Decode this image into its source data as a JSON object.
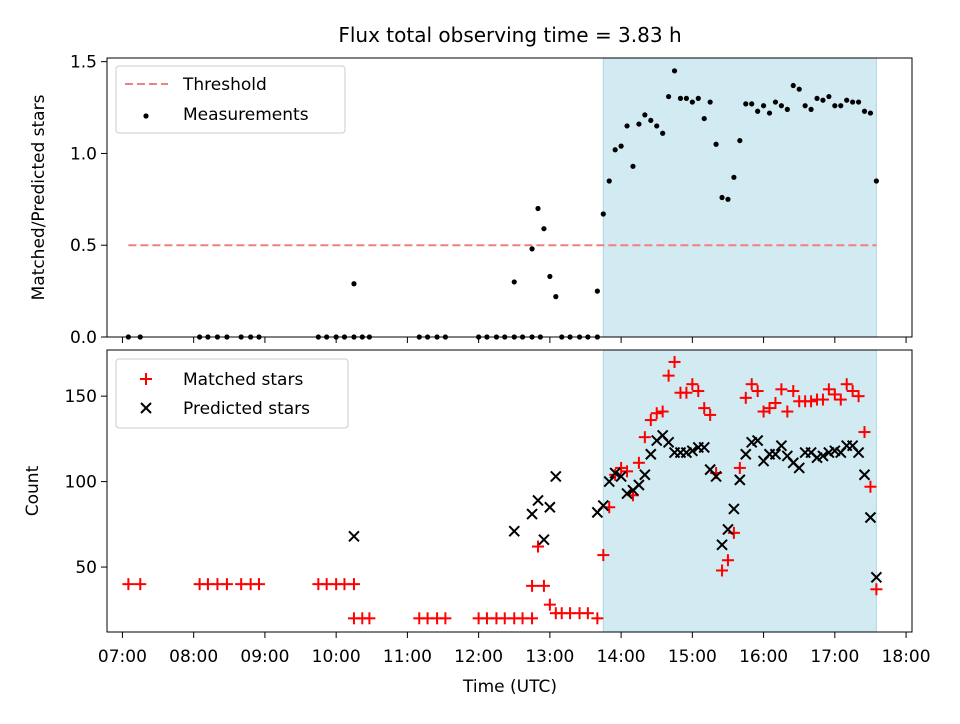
{
  "figure": {
    "title": "Flux total observing time = 3.83 h",
    "xlabel": "Time (UTC)",
    "x_ticks": [
      "07:00",
      "08:00",
      "09:00",
      "10:00",
      "11:00",
      "12:00",
      "13:00",
      "14:00",
      "15:00",
      "16:00",
      "17:00",
      "18:00"
    ],
    "shade_color": "#add8e6"
  },
  "chart_data": [
    {
      "type": "scatter",
      "ylabel": "Matched/Predicted stars",
      "xlim": [
        "06:47",
        "18:05"
      ],
      "ylim": [
        0,
        1.52
      ],
      "y_ticks": [
        0.0,
        0.5,
        1.0,
        1.5
      ],
      "y_tick_labels": [
        "0.0",
        "0.5",
        "1.0",
        "1.5"
      ],
      "legend_position": "top-left",
      "shaded_interval": [
        "13:45",
        "17:35"
      ],
      "threshold": {
        "name": "Threshold",
        "value": 0.5,
        "x_range": [
          "07:05",
          "17:35"
        ],
        "color": "#f08080"
      },
      "series": [
        {
          "name": "Measurements",
          "color": "#000000",
          "points": [
            [
              "07:05",
              0.0
            ],
            [
              "07:15",
              0.0
            ],
            [
              "08:05",
              0.0
            ],
            [
              "08:12",
              0.0
            ],
            [
              "08:20",
              0.0
            ],
            [
              "08:28",
              0.0
            ],
            [
              "08:40",
              0.0
            ],
            [
              "08:48",
              0.0
            ],
            [
              "08:55",
              0.0
            ],
            [
              "09:45",
              0.0
            ],
            [
              "09:52",
              0.0
            ],
            [
              "10:00",
              0.0
            ],
            [
              "10:07",
              0.0
            ],
            [
              "10:15",
              0.0
            ],
            [
              "10:15",
              0.29
            ],
            [
              "10:22",
              0.0
            ],
            [
              "10:28",
              0.0
            ],
            [
              "11:10",
              0.0
            ],
            [
              "11:17",
              0.0
            ],
            [
              "11:25",
              0.0
            ],
            [
              "11:32",
              0.0
            ],
            [
              "12:00",
              0.0
            ],
            [
              "12:07",
              0.0
            ],
            [
              "12:15",
              0.0
            ],
            [
              "12:22",
              0.0
            ],
            [
              "12:30",
              0.0
            ],
            [
              "12:37",
              0.0
            ],
            [
              "12:45",
              0.0
            ],
            [
              "12:30",
              0.3
            ],
            [
              "12:52",
              0.0
            ],
            [
              "12:45",
              0.48
            ],
            [
              "12:50",
              0.7
            ],
            [
              "12:55",
              0.59
            ],
            [
              "13:00",
              0.33
            ],
            [
              "13:05",
              0.22
            ],
            [
              "13:10",
              0.0
            ],
            [
              "13:17",
              0.0
            ],
            [
              "13:25",
              0.0
            ],
            [
              "13:32",
              0.0
            ],
            [
              "13:40",
              0.0
            ],
            [
              "13:40",
              0.25
            ],
            [
              "13:45",
              0.67
            ],
            [
              "13:50",
              0.85
            ],
            [
              "13:55",
              1.02
            ],
            [
              "14:00",
              1.04
            ],
            [
              "14:05",
              1.15
            ],
            [
              "14:10",
              0.93
            ],
            [
              "14:15",
              1.16
            ],
            [
              "14:20",
              1.21
            ],
            [
              "14:25",
              1.18
            ],
            [
              "14:30",
              1.15
            ],
            [
              "14:35",
              1.11
            ],
            [
              "14:40",
              1.31
            ],
            [
              "14:45",
              1.45
            ],
            [
              "14:50",
              1.3
            ],
            [
              "14:55",
              1.3
            ],
            [
              "15:00",
              1.28
            ],
            [
              "15:05",
              1.3
            ],
            [
              "15:10",
              1.19
            ],
            [
              "15:15",
              1.28
            ],
            [
              "15:20",
              1.05
            ],
            [
              "15:25",
              0.76
            ],
            [
              "15:30",
              0.75
            ],
            [
              "15:35",
              0.87
            ],
            [
              "15:40",
              1.07
            ],
            [
              "15:45",
              1.27
            ],
            [
              "15:50",
              1.27
            ],
            [
              "15:55",
              1.23
            ],
            [
              "16:00",
              1.26
            ],
            [
              "16:05",
              1.22
            ],
            [
              "16:10",
              1.28
            ],
            [
              "16:15",
              1.26
            ],
            [
              "16:20",
              1.24
            ],
            [
              "16:25",
              1.37
            ],
            [
              "16:30",
              1.35
            ],
            [
              "16:35",
              1.26
            ],
            [
              "16:40",
              1.24
            ],
            [
              "16:45",
              1.3
            ],
            [
              "16:50",
              1.29
            ],
            [
              "16:55",
              1.31
            ],
            [
              "17:00",
              1.26
            ],
            [
              "17:05",
              1.26
            ],
            [
              "17:10",
              1.29
            ],
            [
              "17:15",
              1.28
            ],
            [
              "17:20",
              1.28
            ],
            [
              "17:25",
              1.23
            ],
            [
              "17:30",
              1.22
            ],
            [
              "17:35",
              0.85
            ]
          ]
        }
      ]
    },
    {
      "type": "scatter",
      "ylabel": "Count",
      "xlim": [
        "06:47",
        "18:05"
      ],
      "ylim": [
        12,
        177
      ],
      "y_ticks": [
        50,
        100,
        150
      ],
      "y_tick_labels": [
        "50",
        "100",
        "150"
      ],
      "legend_position": "top-left",
      "shaded_interval": [
        "13:45",
        "17:35"
      ],
      "series": [
        {
          "name": "Matched stars",
          "marker": "plus",
          "color": "#ff0000",
          "points": [
            [
              "07:05",
              40
            ],
            [
              "07:15",
              40
            ],
            [
              "08:05",
              40
            ],
            [
              "08:12",
              40
            ],
            [
              "08:20",
              40
            ],
            [
              "08:28",
              40
            ],
            [
              "08:40",
              40
            ],
            [
              "08:48",
              40
            ],
            [
              "08:55",
              40
            ],
            [
              "09:45",
              40
            ],
            [
              "09:52",
              40
            ],
            [
              "10:00",
              40
            ],
            [
              "10:07",
              40
            ],
            [
              "10:15",
              40
            ],
            [
              "10:15",
              20
            ],
            [
              "10:22",
              20
            ],
            [
              "10:28",
              20
            ],
            [
              "11:10",
              20
            ],
            [
              "11:17",
              20
            ],
            [
              "11:25",
              20
            ],
            [
              "11:32",
              20
            ],
            [
              "12:00",
              20
            ],
            [
              "12:07",
              20
            ],
            [
              "12:15",
              20
            ],
            [
              "12:22",
              20
            ],
            [
              "12:30",
              20
            ],
            [
              "12:37",
              20
            ],
            [
              "12:45",
              20
            ],
            [
              "12:45",
              39
            ],
            [
              "12:50",
              62
            ],
            [
              "12:55",
              39
            ],
            [
              "13:00",
              28
            ],
            [
              "13:05",
              23
            ],
            [
              "13:10",
              23
            ],
            [
              "13:17",
              23
            ],
            [
              "13:25",
              23
            ],
            [
              "13:32",
              23
            ],
            [
              "13:40",
              20
            ],
            [
              "13:45",
              57
            ],
            [
              "13:50",
              85
            ],
            [
              "13:55",
              104
            ],
            [
              "14:00",
              108
            ],
            [
              "14:05",
              106
            ],
            [
              "14:10",
              92
            ],
            [
              "14:15",
              111
            ],
            [
              "14:20",
              126
            ],
            [
              "14:25",
              136
            ],
            [
              "14:30",
              140
            ],
            [
              "14:35",
              141
            ],
            [
              "14:40",
              162
            ],
            [
              "14:45",
              170
            ],
            [
              "14:50",
              152
            ],
            [
              "14:55",
              152
            ],
            [
              "15:00",
              157
            ],
            [
              "15:05",
              153
            ],
            [
              "15:10",
              143
            ],
            [
              "15:15",
              139
            ],
            [
              "15:20",
              105
            ],
            [
              "15:25",
              48
            ],
            [
              "15:30",
              54
            ],
            [
              "15:35",
              70
            ],
            [
              "15:40",
              108
            ],
            [
              "15:45",
              149
            ],
            [
              "15:50",
              157
            ],
            [
              "15:55",
              153
            ],
            [
              "16:00",
              141
            ],
            [
              "16:05",
              143
            ],
            [
              "16:10",
              146
            ],
            [
              "16:15",
              154
            ],
            [
              "16:20",
              141
            ],
            [
              "16:25",
              153
            ],
            [
              "16:30",
              147
            ],
            [
              "16:35",
              147
            ],
            [
              "16:40",
              147
            ],
            [
              "16:45",
              148
            ],
            [
              "16:50",
              148
            ],
            [
              "16:55",
              154
            ],
            [
              "17:00",
              151
            ],
            [
              "17:05",
              148
            ],
            [
              "17:10",
              157
            ],
            [
              "17:15",
              153
            ],
            [
              "17:20",
              150
            ],
            [
              "17:25",
              129
            ],
            [
              "17:30",
              97
            ],
            [
              "17:35",
              37
            ]
          ]
        },
        {
          "name": "Predicted stars",
          "marker": "x",
          "color": "#000000",
          "points": [
            [
              "10:15",
              68
            ],
            [
              "12:30",
              71
            ],
            [
              "12:45",
              81
            ],
            [
              "12:50",
              89
            ],
            [
              "12:55",
              66
            ],
            [
              "13:00",
              85
            ],
            [
              "13:05",
              103
            ],
            [
              "13:40",
              82
            ],
            [
              "13:45",
              86
            ],
            [
              "13:50",
              100
            ],
            [
              "13:55",
              105
            ],
            [
              "14:00",
              103
            ],
            [
              "14:05",
              93
            ],
            [
              "14:10",
              95
            ],
            [
              "14:15",
              98
            ],
            [
              "14:20",
              104
            ],
            [
              "14:25",
              116
            ],
            [
              "14:30",
              124
            ],
            [
              "14:35",
              127
            ],
            [
              "14:40",
              123
            ],
            [
              "14:45",
              117
            ],
            [
              "14:50",
              117
            ],
            [
              "14:55",
              117
            ],
            [
              "15:00",
              118
            ],
            [
              "15:05",
              120
            ],
            [
              "15:10",
              120
            ],
            [
              "15:15",
              107
            ],
            [
              "15:20",
              103
            ],
            [
              "15:25",
              63
            ],
            [
              "15:30",
              72
            ],
            [
              "15:35",
              84
            ],
            [
              "15:40",
              101
            ],
            [
              "15:45",
              116
            ],
            [
              "15:50",
              123
            ],
            [
              "15:55",
              124
            ],
            [
              "16:00",
              112
            ],
            [
              "16:05",
              116
            ],
            [
              "16:10",
              116
            ],
            [
              "16:15",
              121
            ],
            [
              "16:20",
              115
            ],
            [
              "16:25",
              111
            ],
            [
              "16:30",
              108
            ],
            [
              "16:35",
              117
            ],
            [
              "16:40",
              117
            ],
            [
              "16:45",
              114
            ],
            [
              "16:50",
              115
            ],
            [
              "16:55",
              117
            ],
            [
              "17:00",
              118
            ],
            [
              "17:05",
              117
            ],
            [
              "17:10",
              121
            ],
            [
              "17:15",
              121
            ],
            [
              "17:20",
              117
            ],
            [
              "17:25",
              104
            ],
            [
              "17:30",
              79
            ],
            [
              "17:35",
              44
            ]
          ]
        }
      ]
    }
  ]
}
